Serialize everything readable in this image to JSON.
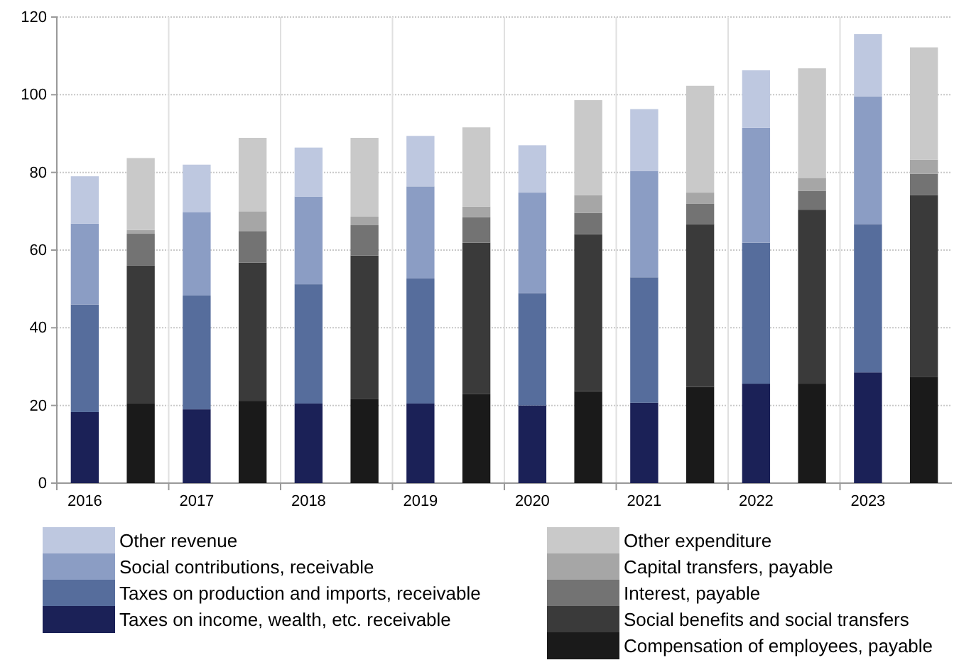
{
  "chart_data": {
    "type": "bar",
    "stacked": true,
    "categories": [
      "2016",
      null,
      "2017",
      null,
      "2018",
      null,
      "2019",
      null,
      "2020",
      null,
      "2021",
      null,
      "2022",
      null,
      "2023",
      null
    ],
    "series": [
      {
        "name": "Taxes on income, wealth, etc. receivable",
        "color": "#1b2157",
        "values": [
          18.3,
          null,
          19.0,
          null,
          20.5,
          null,
          20.5,
          null,
          20.0,
          null,
          20.7,
          null,
          25.6,
          null,
          28.5,
          null
        ]
      },
      {
        "name": "Taxes on production and imports, receivable",
        "color": "#566d9c",
        "values": [
          27.7,
          null,
          29.3,
          null,
          30.7,
          null,
          32.2,
          null,
          28.9,
          null,
          32.3,
          null,
          36.3,
          null,
          38.2,
          null
        ]
      },
      {
        "name": "Social contributions, receivable",
        "color": "#8b9dc4",
        "values": [
          20.8,
          null,
          21.5,
          null,
          22.6,
          null,
          23.7,
          null,
          25.9,
          null,
          27.4,
          null,
          29.6,
          null,
          32.9,
          null
        ]
      },
      {
        "name": "Other revenue",
        "color": "#bec8e0",
        "values": [
          12.2,
          null,
          12.2,
          null,
          12.6,
          null,
          13.0,
          null,
          12.2,
          null,
          15.9,
          null,
          14.8,
          null,
          16.0,
          null
        ]
      },
      {
        "name": "Compensation of employees, payable",
        "color": "#1a1a1a",
        "values": [
          null,
          20.5,
          null,
          21.2,
          null,
          21.6,
          null,
          23.0,
          null,
          23.7,
          null,
          24.8,
          null,
          25.6,
          null,
          27.4
        ]
      },
      {
        "name": "Social benefits and social transfers",
        "color": "#3a3a3a",
        "values": [
          null,
          35.5,
          null,
          35.6,
          null,
          37.0,
          null,
          38.9,
          null,
          40.4,
          null,
          41.9,
          null,
          44.8,
          null,
          46.7
        ]
      },
      {
        "name": "Interest, payable",
        "color": "#737373",
        "values": [
          null,
          8.2,
          null,
          8.1,
          null,
          7.8,
          null,
          6.6,
          null,
          5.5,
          null,
          5.2,
          null,
          4.8,
          null,
          5.5
        ]
      },
      {
        "name": "Capital transfers, payable",
        "color": "#a6a6a6",
        "values": [
          null,
          1.0,
          null,
          5.1,
          null,
          2.2,
          null,
          2.7,
          null,
          4.5,
          null,
          2.9,
          null,
          3.4,
          null,
          3.7
        ]
      },
      {
        "name": "Other expenditure",
        "color": "#c9c9c9",
        "values": [
          null,
          18.5,
          null,
          18.9,
          null,
          20.3,
          null,
          20.4,
          null,
          24.5,
          null,
          27.5,
          null,
          28.2,
          null,
          28.9
        ]
      }
    ],
    "ylim": [
      0,
      120
    ],
    "yticks": [
      0,
      20,
      40,
      60,
      80,
      100,
      120
    ],
    "grid": true,
    "legend": "bottom"
  }
}
